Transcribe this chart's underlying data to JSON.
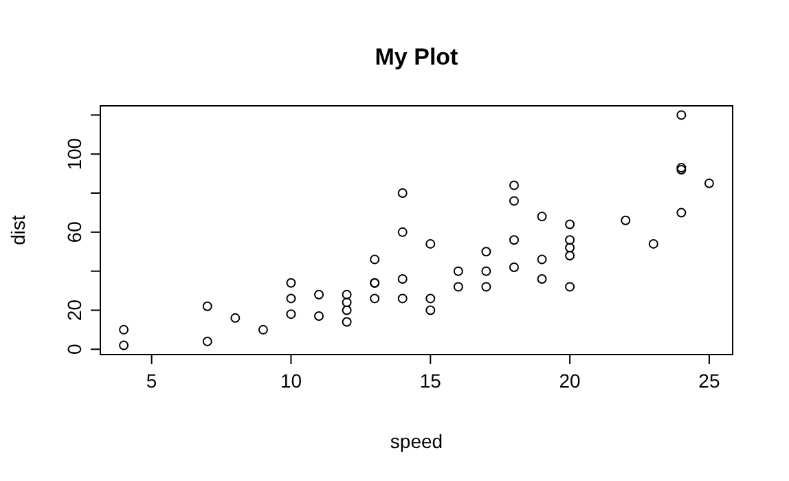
{
  "chart_data": {
    "type": "scatter",
    "title": "My Plot",
    "xlabel": "speed",
    "ylabel": "dist",
    "marker": "circle",
    "grid": false,
    "xlim": [
      3.16,
      25.84
    ],
    "ylim": [
      -2.72,
      124.72
    ],
    "xticks": [
      5,
      10,
      15,
      20,
      25
    ],
    "yticks": [
      0,
      20,
      {
        "value": 40,
        "label": null
      },
      60,
      {
        "value": 80,
        "label": null
      },
      100,
      {
        "value": 120,
        "label": null
      }
    ],
    "series": [
      {
        "color": "#000000",
        "x": [
          4,
          4,
          7,
          7,
          8,
          9,
          10,
          10,
          10,
          11,
          11,
          12,
          12,
          12,
          12,
          13,
          13,
          13,
          13,
          14,
          14,
          14,
          14,
          15,
          15,
          15,
          16,
          16,
          17,
          17,
          17,
          18,
          18,
          18,
          18,
          19,
          19,
          19,
          20,
          20,
          20,
          20,
          20,
          22,
          23,
          24,
          24,
          24,
          24,
          25
        ],
        "values": [
          2,
          10,
          4,
          22,
          16,
          10,
          18,
          26,
          34,
          17,
          28,
          14,
          20,
          24,
          28,
          26,
          34,
          34,
          46,
          26,
          36,
          60,
          80,
          20,
          26,
          54,
          32,
          40,
          32,
          40,
          50,
          42,
          56,
          76,
          84,
          36,
          46,
          68,
          32,
          48,
          52,
          56,
          64,
          66,
          54,
          70,
          92,
          93,
          120,
          85
        ]
      }
    ]
  }
}
